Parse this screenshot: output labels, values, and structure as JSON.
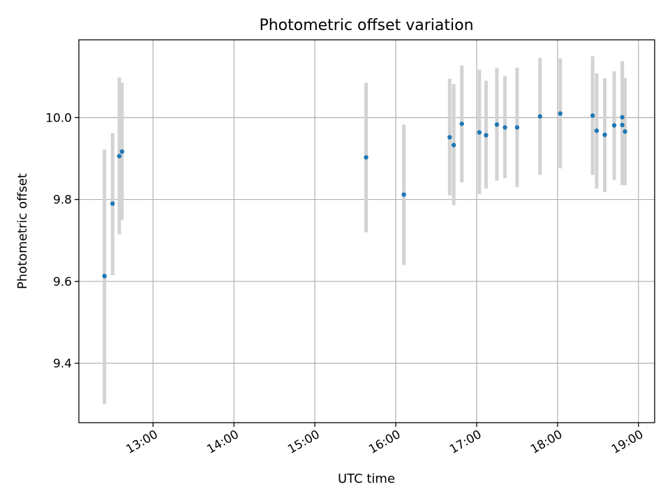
{
  "chart_data": {
    "type": "scatter",
    "title": "Photometric offset variation",
    "xlabel": "UTC time",
    "ylabel": "Photometric offset",
    "xlim": [
      "12:05",
      "19:12"
    ],
    "ylim": [
      9.255,
      10.19
    ],
    "x_ticks": [
      "13:00",
      "14:00",
      "15:00",
      "16:00",
      "17:00",
      "18:00",
      "19:00"
    ],
    "y_ticks": [
      9.4,
      9.6,
      9.8,
      10.0
    ],
    "y_tick_labels": [
      "9.4",
      "9.6",
      "9.8",
      "10.0"
    ],
    "grid": true,
    "legend": "none",
    "point_color": "#1f77b4",
    "errorbar_color": "#d3d3d3",
    "points": [
      {
        "x": "12:24",
        "y": 9.613,
        "err_low": 9.3,
        "err_high": 9.922
      },
      {
        "x": "12:30",
        "y": 9.79,
        "err_low": 9.615,
        "err_high": 9.962
      },
      {
        "x": "12:35",
        "y": 9.906,
        "err_low": 9.715,
        "err_high": 10.098
      },
      {
        "x": "12:37",
        "y": 9.917,
        "err_low": 9.75,
        "err_high": 10.085
      },
      {
        "x": "15:38",
        "y": 9.903,
        "err_low": 9.72,
        "err_high": 10.085
      },
      {
        "x": "16:06",
        "y": 9.812,
        "err_low": 9.64,
        "err_high": 9.983
      },
      {
        "x": "16:40",
        "y": 9.952,
        "err_low": 9.81,
        "err_high": 10.095
      },
      {
        "x": "16:43",
        "y": 9.933,
        "err_low": 9.786,
        "err_high": 10.082
      },
      {
        "x": "16:49",
        "y": 9.985,
        "err_low": 9.842,
        "err_high": 10.127
      },
      {
        "x": "17:02",
        "y": 9.964,
        "err_low": 9.813,
        "err_high": 10.117
      },
      {
        "x": "17:07",
        "y": 9.957,
        "err_low": 9.827,
        "err_high": 10.09
      },
      {
        "x": "17:15",
        "y": 9.983,
        "err_low": 9.846,
        "err_high": 10.121
      },
      {
        "x": "17:21",
        "y": 9.976,
        "err_low": 9.852,
        "err_high": 10.101
      },
      {
        "x": "17:30",
        "y": 9.976,
        "err_low": 9.83,
        "err_high": 10.122
      },
      {
        "x": "17:47",
        "y": 10.003,
        "err_low": 9.86,
        "err_high": 10.146
      },
      {
        "x": "18:02",
        "y": 10.01,
        "err_low": 9.876,
        "err_high": 10.145
      },
      {
        "x": "18:26",
        "y": 10.005,
        "err_low": 9.86,
        "err_high": 10.15
      },
      {
        "x": "18:29",
        "y": 9.968,
        "err_low": 9.827,
        "err_high": 10.108
      },
      {
        "x": "18:35",
        "y": 9.958,
        "err_low": 9.818,
        "err_high": 10.096
      },
      {
        "x": "18:42",
        "y": 9.981,
        "err_low": 9.848,
        "err_high": 10.113
      },
      {
        "x": "18:48",
        "y": 10.001,
        "err_low": 9.864,
        "err_high": 10.138
      },
      {
        "x": "18:48",
        "y": 9.982,
        "err_low": 9.835,
        "err_high": 10.127
      },
      {
        "x": "18:50",
        "y": 9.966,
        "err_low": 9.835,
        "err_high": 10.097
      }
    ]
  }
}
